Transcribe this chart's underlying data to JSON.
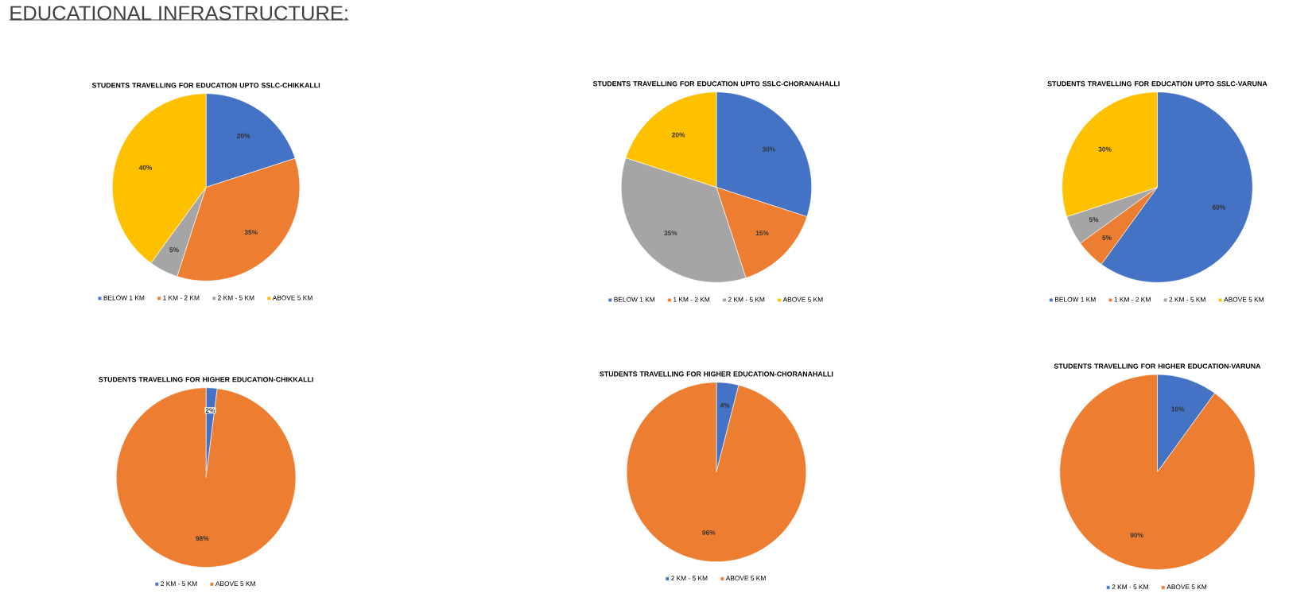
{
  "chart_data": [
    {
      "type": "pie",
      "title": "STUDENTS TRAVELLING FOR EDUCATION UPTO SSLC-CHIKKALLI",
      "annotations": [
        "EDUCATIONAL INFRASTRUCTURE:"
      ],
      "categories": [
        "BELOW 1 KM",
        "1 KM - 2 KM",
        "2 KM - 5 KM",
        "ABOVE 5 KM"
      ],
      "values": [
        20,
        35,
        5,
        40
      ],
      "value_labels": [
        "20%",
        "35%",
        "5%",
        "40%"
      ],
      "colors": [
        "#4472c4",
        "#ed7d31",
        "#a5a5a5",
        "#ffc000"
      ],
      "legend": "bottom"
    },
    {
      "type": "pie",
      "title": "STUDENTS TRAVELLING FOR EDUCATION UPTO SSLC-CHORANAHALLI",
      "categories": [
        "BELOW 1 KM",
        "1 KM - 2 KM",
        "2 KM - 5 KM",
        "ABOVE 5 KM"
      ],
      "values": [
        30,
        15,
        35,
        20
      ],
      "value_labels": [
        "30%",
        "15%",
        "35%",
        "20%"
      ],
      "colors": [
        "#4472c4",
        "#ed7d31",
        "#a5a5a5",
        "#ffc000"
      ],
      "legend": "bottom"
    },
    {
      "type": "pie",
      "title": "STUDENTS TRAVELLING FOR EDUCATION UPTO SSLC-VARUNA",
      "categories": [
        "BELOW 1 KM",
        "1 KM - 2 KM",
        "2 KM - 5 KM",
        "ABOVE 5 KM"
      ],
      "values": [
        60,
        5,
        5,
        30
      ],
      "value_labels": [
        "60%",
        "5%",
        "5%",
        "30%"
      ],
      "colors": [
        "#4472c4",
        "#ed7d31",
        "#a5a5a5",
        "#ffc000"
      ],
      "legend": "bottom"
    },
    {
      "type": "pie",
      "title": "STUDENTS TRAVELLING FOR HIGHER EDUCATION-CHIKKALLI",
      "categories": [
        "2 KM - 5 KM",
        "ABOVE 5 KM"
      ],
      "values": [
        2,
        98
      ],
      "value_labels": [
        "2%",
        "98%"
      ],
      "colors": [
        "#4472c4",
        "#ed7d31"
      ],
      "legend": "bottom"
    },
    {
      "type": "pie",
      "title": "STUDENTS TRAVELLING FOR HIGHER EDUCATION-CHORANAHALLI",
      "categories": [
        "2 KM - 5 KM",
        "ABOVE 5 KM"
      ],
      "values": [
        4,
        96
      ],
      "value_labels": [
        "4%",
        "96%"
      ],
      "colors": [
        "#4472c4",
        "#ed7d31"
      ],
      "legend": "bottom"
    },
    {
      "type": "pie",
      "title": "STUDENTS TRAVELLING FOR HIGHER EDUCATION-VARUNA",
      "categories": [
        "2 KM - 5 KM",
        "ABOVE 5 KM"
      ],
      "values": [
        10,
        90
      ],
      "value_labels": [
        "10%",
        "90%"
      ],
      "colors": [
        "#4472c4",
        "#ed7d31"
      ],
      "legend": "bottom"
    }
  ]
}
